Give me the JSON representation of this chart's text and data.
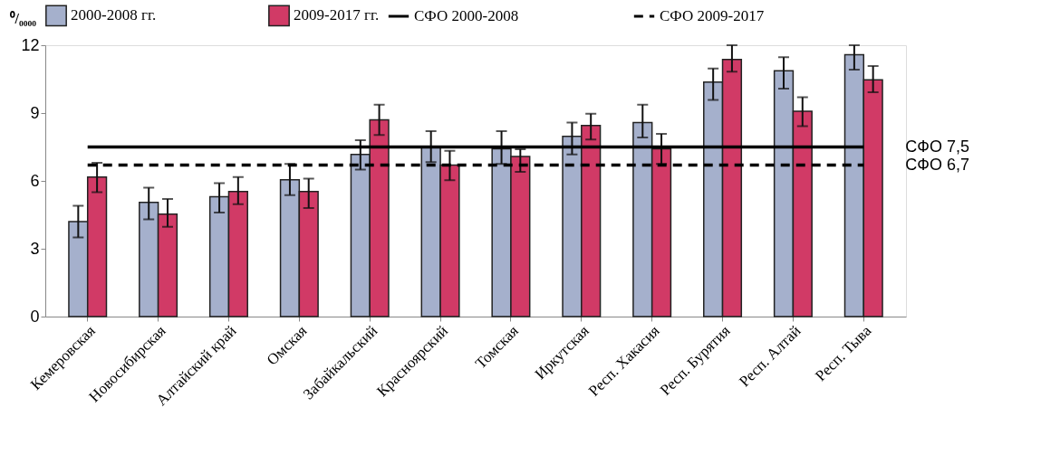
{
  "chart_data": {
    "type": "bar",
    "ylabel": "⁰/₀₀₀₀",
    "categories": [
      "Кемеровская",
      "Новосибирская",
      "Алтайский край",
      "Омская",
      "Забайкальский",
      "Красноярский",
      "Томская",
      "Иркутская",
      "Респ. Хакасия",
      "Респ. Бурятия",
      "Респ. Алтай",
      "Респ. Тыва"
    ],
    "series": [
      {
        "name": "2000-2008 гг.",
        "color": "#a5b0cc",
        "values": [
          4.2,
          5.05,
          5.3,
          6.05,
          7.17,
          7.5,
          7.42,
          7.97,
          8.58,
          10.37,
          10.87,
          11.58
        ],
        "errors": [
          [
            3.5,
            4.9
          ],
          [
            4.3,
            5.7
          ],
          [
            4.6,
            5.9
          ],
          [
            5.37,
            6.75
          ],
          [
            6.5,
            7.8
          ],
          [
            6.83,
            8.2
          ],
          [
            6.75,
            8.2
          ],
          [
            7.17,
            8.58
          ],
          [
            7.92,
            9.37
          ],
          [
            9.58,
            10.97
          ],
          [
            10.08,
            11.47
          ],
          [
            10.92,
            12
          ]
        ]
      },
      {
        "name": "2009-2017 гг.",
        "color": "#d13a66",
        "values": [
          6.17,
          4.53,
          5.53,
          5.53,
          8.7,
          6.7,
          7.08,
          8.45,
          7.42,
          11.37,
          9.08,
          10.47
        ],
        "errors": [
          [
            5.5,
            6.8
          ],
          [
            3.97,
            5.2
          ],
          [
            4.97,
            6.17
          ],
          [
            4.8,
            6.1
          ],
          [
            8.03,
            9.37
          ],
          [
            6.03,
            7.33
          ],
          [
            6.4,
            7.4
          ],
          [
            7.83,
            8.97
          ],
          [
            6.75,
            8.08
          ],
          [
            10.83,
            12
          ],
          [
            8.42,
            9.7
          ],
          [
            9.92,
            11.08
          ]
        ]
      },
      {
        "name": "СФО 2000-2008",
        "type": "line",
        "line_style": "solid",
        "color": "#000000",
        "values": [
          7.5,
          7.5,
          7.5,
          7.5,
          7.5,
          7.5,
          7.5,
          7.5,
          7.5,
          7.5,
          7.5,
          7.5
        ]
      },
      {
        "name": "СФО 2009-2017",
        "type": "line",
        "line_style": "dashed",
        "color": "#000000",
        "values": [
          6.7,
          6.7,
          6.7,
          6.7,
          6.7,
          6.7,
          6.7,
          6.7,
          6.7,
          6.7,
          6.7,
          6.7
        ]
      }
    ],
    "annotations": [
      {
        "text": "СФО 7,5",
        "x": "Респ. Тыва",
        "y": 7.5
      },
      {
        "text": "СФО 6,7",
        "x": "Респ. Тыва",
        "y": 6.7
      }
    ],
    "ylim": [
      0,
      12
    ],
    "yticks": [
      0,
      3,
      6,
      9,
      12
    ],
    "grid": false,
    "legend": "top"
  }
}
